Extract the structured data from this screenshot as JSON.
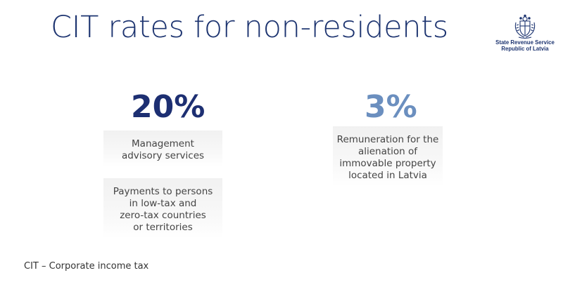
{
  "slide": {
    "title": "CIT rates for non-residents",
    "logo": {
      "org_line1": "State Revenue Service",
      "org_line2": "Republic of Latvia",
      "icon": "coat-of-arms-icon"
    },
    "rates": [
      {
        "value": "20%",
        "color": "#1d2f72",
        "items": [
          {
            "lines": [
              "Management",
              "advisory services"
            ]
          },
          {
            "lines": [
              "Payments to persons",
              "in low-tax and",
              "zero-tax countries",
              "or territories"
            ]
          }
        ]
      },
      {
        "value": "3%",
        "color": "#6b8fbf",
        "items": [
          {
            "lines": [
              "Remuneration for the",
              "alienation of",
              "immovable property",
              "located in Latvia"
            ]
          }
        ]
      }
    ],
    "footnote": "CIT – Corporate income tax"
  }
}
